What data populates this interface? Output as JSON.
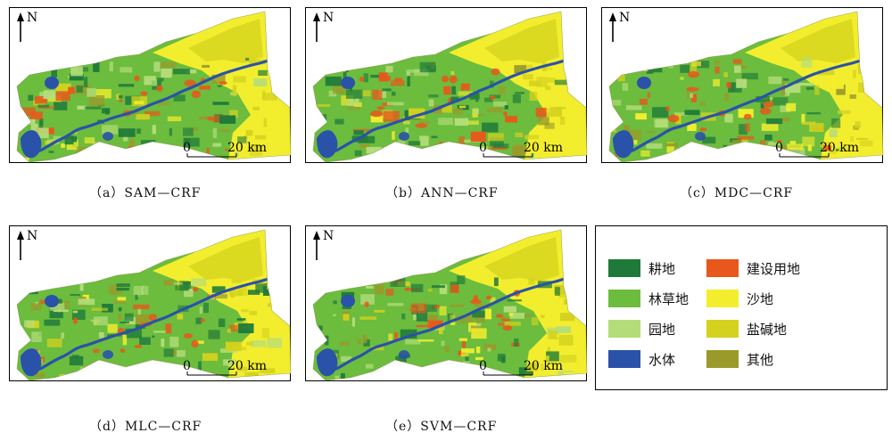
{
  "panels": [
    {
      "id": "a",
      "caption": "（a）SAM—CRF"
    },
    {
      "id": "b",
      "caption": "（b）ANN—CRF"
    },
    {
      "id": "c",
      "caption": "（c）MDC—CRF"
    },
    {
      "id": "d",
      "caption": "（d）MLC—CRF"
    },
    {
      "id": "e",
      "caption": "（e）SVM—CRF"
    }
  ],
  "map": {
    "north_label": "N",
    "scale_zero": "0",
    "scale_label": "20 km"
  },
  "legend": {
    "items": [
      {
        "label": "耕地",
        "color": "#1f7a3a"
      },
      {
        "label": "建设用地",
        "color": "#e8571b"
      },
      {
        "label": "林草地",
        "color": "#6cbc3e"
      },
      {
        "label": "沙地",
        "color": "#f2ee2e"
      },
      {
        "label": "园地",
        "color": "#b4dd7a"
      },
      {
        "label": "盐碱地",
        "color": "#d4d21e"
      },
      {
        "label": "水体",
        "color": "#2a52a8"
      },
      {
        "label": "其他",
        "color": "#9a9a2a"
      }
    ]
  }
}
